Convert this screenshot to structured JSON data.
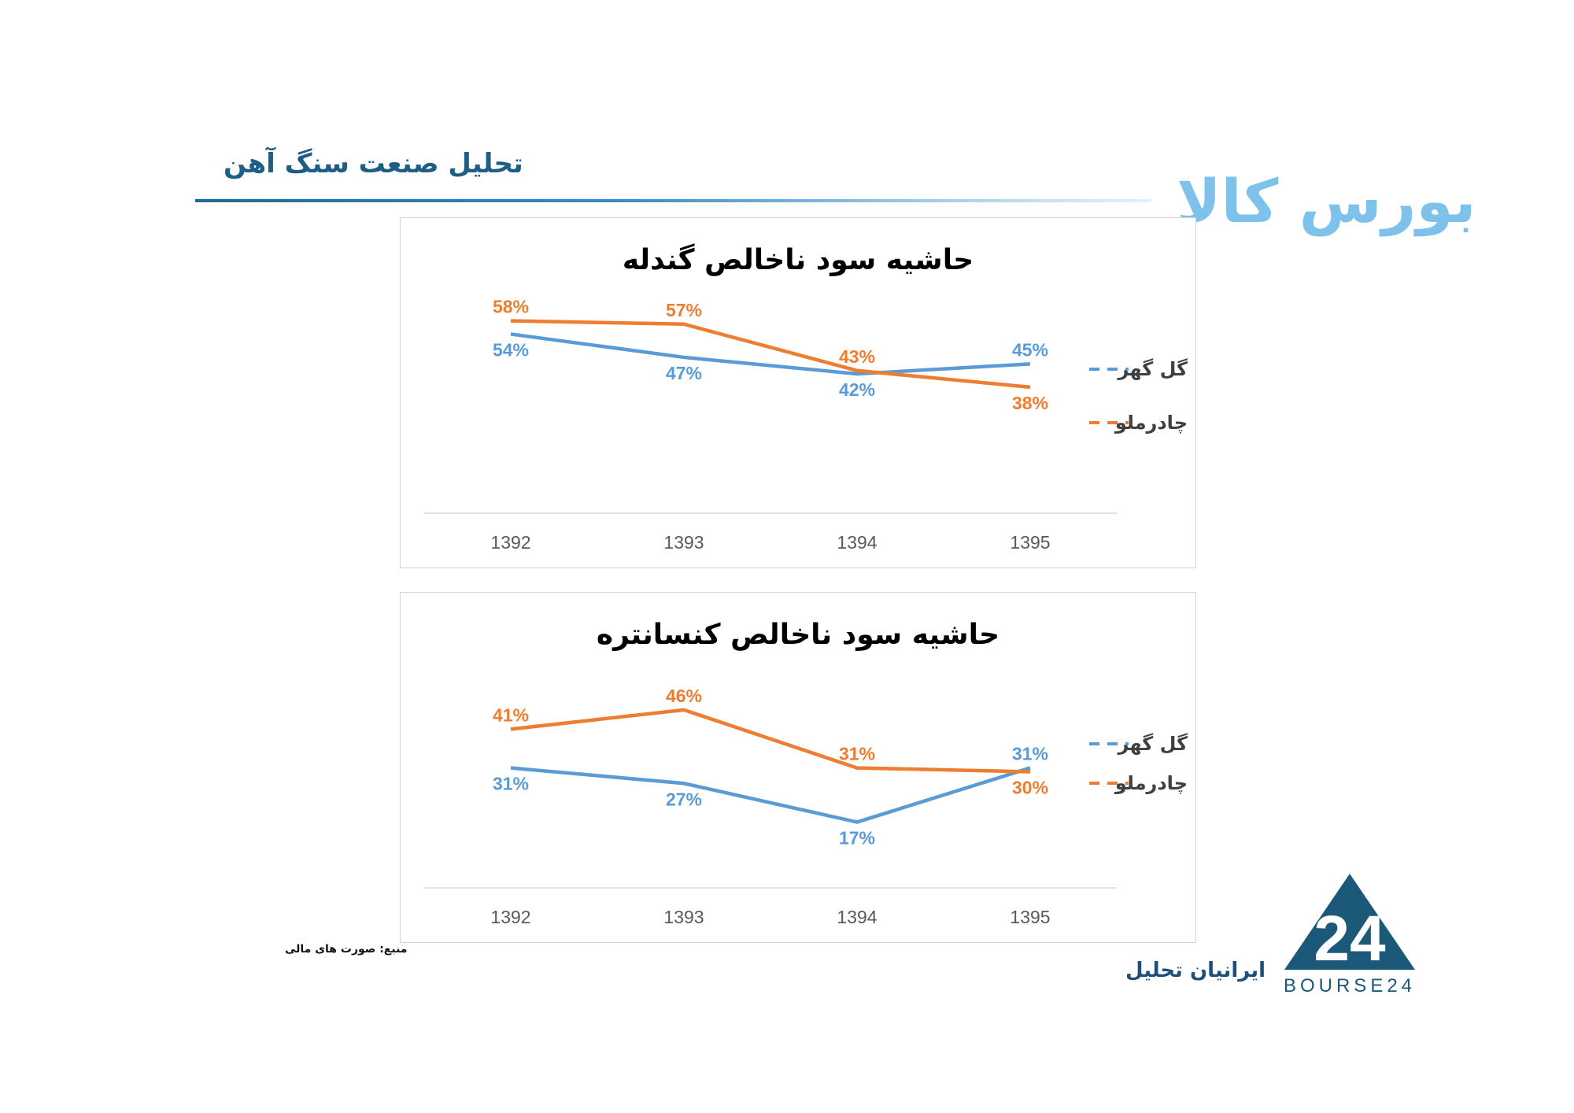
{
  "header": {
    "page_title": "تحلیل صنعت سنگ آهن",
    "brand_logo": "بورس کالا"
  },
  "footer": {
    "source_note": "منبع: صورت های مالی",
    "company_name": "ایرانیان تحلیل",
    "logo_mark": "24",
    "logo_text": "BOURSE24"
  },
  "colors": {
    "golgohar": "#5b9bd5",
    "chadormalu": "#ed7d31",
    "title_blue": "#1e5d86",
    "logo_dark": "#1c5878"
  },
  "chart_data": [
    {
      "type": "line",
      "title": "حاشیه سود ناخالص گندله",
      "categories": [
        "1392",
        "1393",
        "1394",
        "1395"
      ],
      "ylim": [
        0,
        70
      ],
      "grid": false,
      "legend": "right",
      "series": [
        {
          "name": "گل گهر",
          "values": [
            54,
            47,
            42,
            45
          ],
          "labels": [
            "54%",
            "47%",
            "42%",
            "45%"
          ],
          "color": "#5b9bd5"
        },
        {
          "name": "چادرملو",
          "values": [
            58,
            57,
            43,
            38
          ],
          "labels": [
            "58%",
            "57%",
            "43%",
            "38%"
          ],
          "color": "#ed7d31"
        }
      ]
    },
    {
      "type": "line",
      "title": "حاشیه سود ناخالص کنسانتره",
      "categories": [
        "1392",
        "1393",
        "1394",
        "1395"
      ],
      "ylim": [
        0,
        60
      ],
      "grid": false,
      "legend": "right",
      "series": [
        {
          "name": "گل گهر",
          "values": [
            31,
            27,
            17,
            31
          ],
          "labels": [
            "31%",
            "27%",
            "17%",
            "31%"
          ],
          "color": "#5b9bd5"
        },
        {
          "name": "چادرملو",
          "values": [
            41,
            46,
            31,
            30
          ],
          "labels": [
            "41%",
            "46%",
            "31%",
            "30%"
          ],
          "color": "#ed7d31"
        }
      ]
    }
  ]
}
